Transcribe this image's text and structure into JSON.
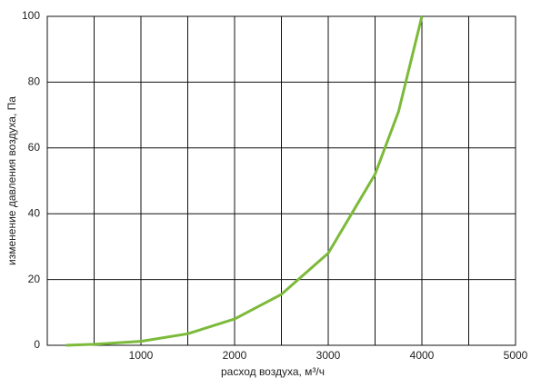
{
  "chart_data": {
    "type": "line",
    "xlabel": "расход воздуха, м³/ч",
    "ylabel": "изменение давления воздуха, Па",
    "x": [
      200,
      500,
      1000,
      1500,
      2000,
      2500,
      3000,
      3250,
      3500,
      3750,
      4000
    ],
    "series": [
      {
        "color": "#7cba3a",
        "values": [
          0,
          0.3,
          1.2,
          3.5,
          8,
          15.5,
          28,
          40,
          52,
          71,
          100
        ]
      }
    ],
    "xlim": [
      0,
      5000
    ],
    "xticks": [
      1000,
      2000,
      3000,
      4000,
      5000
    ],
    "xminorgrid": [
      500,
      1500,
      2500,
      3500,
      4500
    ],
    "ylim": [
      0,
      100
    ],
    "yticks": [
      0,
      20,
      40,
      60,
      80,
      100
    ],
    "grid": true
  }
}
